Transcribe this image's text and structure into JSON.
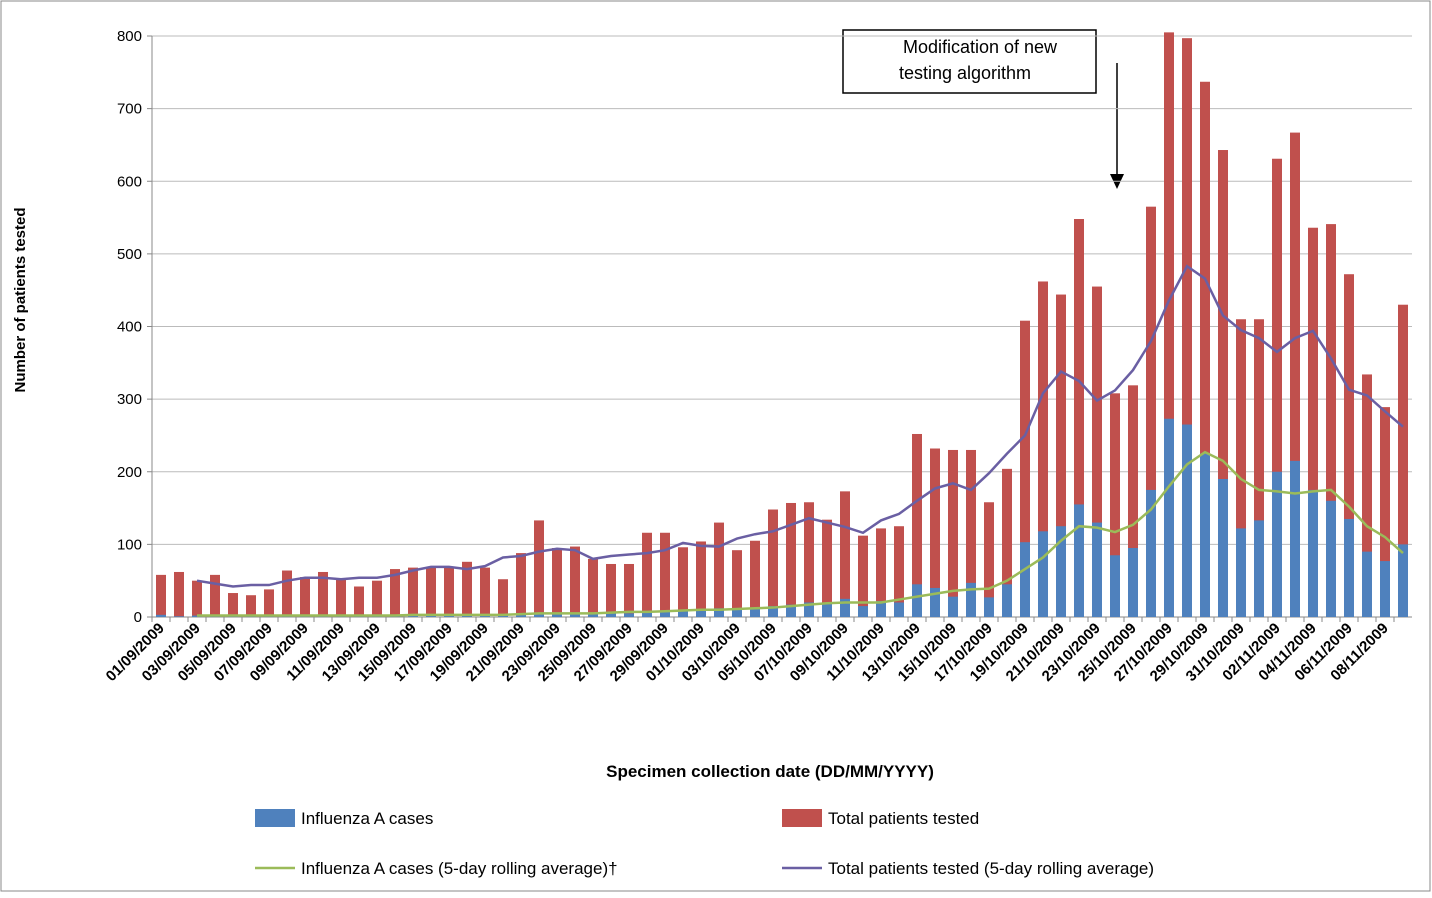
{
  "chart_data": {
    "type": "bar",
    "annotation": [
      "Modification of new",
      "testing algorithm"
    ],
    "x_label": "Specimen collection date (DD/MM/YYYY)",
    "y_label": "Number of patients tested",
    "categories": [
      "01/09/2009",
      null,
      "03/09/2009",
      null,
      "05/09/2009",
      null,
      "07/09/2009",
      null,
      "09/09/2009",
      null,
      "11/09/2009",
      null,
      "13/09/2009",
      null,
      "15/09/2009",
      null,
      "17/09/2009",
      null,
      "19/09/2009",
      null,
      "21/09/2009",
      null,
      "23/09/2009",
      null,
      "25/09/2009",
      null,
      "27/09/2009",
      null,
      "29/09/2009",
      null,
      "01/10/2009",
      null,
      "03/10/2009",
      null,
      "05/10/2009",
      null,
      "07/10/2009",
      null,
      "09/10/2009",
      null,
      "11/10/2009",
      null,
      "13/10/2009",
      null,
      "15/10/2009",
      null,
      "17/10/2009",
      null,
      "19/10/2009",
      null,
      "21/10/2009",
      null,
      "23/10/2009",
      null,
      "25/10/2009",
      null,
      "27/10/2009",
      null,
      "29/10/2009",
      null,
      "31/10/2009",
      null,
      "02/11/2009",
      null,
      "04/11/2009",
      null,
      "06/11/2009",
      null,
      "08/11/2009",
      null
    ],
    "series": [
      {
        "name": "Total patients tested",
        "type": "bar",
        "color": "#c0504d",
        "values": [
          58,
          62,
          50,
          58,
          33,
          30,
          38,
          64,
          55,
          62,
          52,
          42,
          50,
          66,
          68,
          68,
          68,
          76,
          68,
          52,
          88,
          133,
          95,
          97,
          80,
          73,
          73,
          116,
          116,
          96,
          104,
          130,
          92,
          105,
          148,
          157,
          158,
          134,
          173,
          112,
          122,
          125,
          252,
          232,
          230,
          230,
          158,
          204,
          408,
          462,
          444,
          548,
          455,
          308,
          319,
          565,
          805,
          797,
          737,
          643,
          410,
          410,
          631,
          667,
          536,
          541,
          472,
          334,
          289,
          430
        ]
      },
      {
        "name": "Influenza A cases",
        "type": "bar",
        "color": "#4f81bd",
        "values": [
          3,
          1,
          2,
          2,
          1,
          1,
          1,
          2,
          1,
          1,
          2,
          2,
          2,
          3,
          3,
          2,
          3,
          3,
          3,
          3,
          4,
          6,
          4,
          5,
          4,
          5,
          5,
          8,
          8,
          9,
          11,
          12,
          10,
          12,
          15,
          17,
          20,
          18,
          25,
          15,
          22,
          20,
          45,
          40,
          28,
          47,
          27,
          45,
          103,
          118,
          125,
          155,
          130,
          85,
          95,
          175,
          273,
          265,
          225,
          190,
          122,
          133,
          200,
          215,
          175,
          160,
          135,
          90,
          77,
          100
        ]
      },
      {
        "name": "Influenza A cases (5-day rolling average)†",
        "type": "line",
        "color": "#9bbb59",
        "values": [
          null,
          null,
          2,
          2,
          2,
          2,
          2,
          2,
          2,
          2,
          2,
          2,
          2,
          2,
          3,
          3,
          3,
          3,
          3,
          3,
          4,
          5,
          5,
          5,
          5,
          6,
          7,
          7,
          8,
          9,
          10,
          10,
          11,
          12,
          13,
          15,
          17,
          19,
          20,
          20,
          20,
          24,
          28,
          32,
          36,
          38,
          39,
          50,
          66,
          82,
          105,
          125,
          123,
          117,
          127,
          148,
          180,
          210,
          227,
          215,
          190,
          175,
          173,
          170,
          173,
          175,
          152,
          125,
          110,
          88
        ]
      },
      {
        "name": "Total patients tested (5-day rolling average)",
        "type": "line",
        "color": "#6a5fa3",
        "values": [
          null,
          null,
          50,
          46,
          42,
          44,
          44,
          50,
          54,
          54,
          52,
          54,
          54,
          58,
          64,
          69,
          69,
          66,
          70,
          82,
          84,
          90,
          94,
          92,
          80,
          84,
          86,
          88,
          92,
          102,
          98,
          97,
          108,
          114,
          118,
          127,
          136,
          130,
          124,
          116,
          133,
          142,
          160,
          177,
          184,
          175,
          198,
          225,
          250,
          308,
          338,
          325,
          298,
          312,
          340,
          380,
          436,
          483,
          466,
          415,
          395,
          384,
          365,
          384,
          394,
          356,
          313,
          305,
          283,
          262
        ]
      }
    ],
    "ylim": [
      0,
      800
    ],
    "yticks": [
      0,
      100,
      200,
      300,
      400,
      500,
      600,
      700,
      800
    ],
    "grid": true
  }
}
